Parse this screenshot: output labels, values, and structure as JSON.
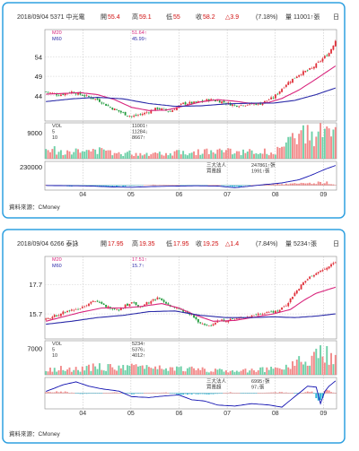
{
  "chart_data": [
    {
      "type": "candlestick",
      "header": {
        "date": "2018/09/04",
        "stock": "5371 中光電",
        "open_label": "開",
        "open": "55.4",
        "high_label": "高",
        "high": "59.1",
        "low_label": "低",
        "low": "55",
        "close_label": "收",
        "close": "58.2",
        "change": "△3.9",
        "change_pct": "(7.18%)",
        "volume_text": "量 11001↑張",
        "period": "日"
      },
      "ma_legend": [
        {
          "name": "M20",
          "value": "51.64↑",
          "color": "#d8247c"
        },
        {
          "name": "M60",
          "value": "45.99↑",
          "color": "#2a2aa8"
        }
      ],
      "price_axis": {
        "ticks": [
          "54",
          "49",
          "44"
        ],
        "range": [
          37.5,
          61
        ]
      },
      "volume_axis": {
        "ticks": [
          "9000"
        ],
        "max": 12500
      },
      "volume_legend": [
        {
          "name": "VOL",
          "value": "11001↑"
        },
        {
          "name": "5",
          "value": "11284↓"
        },
        {
          "name": "10",
          "value": "8667↑"
        }
      ],
      "inst_axis": {
        "ticks": [
          "230000"
        ],
        "range": [
          -60000,
          300000
        ]
      },
      "inst_legend": [
        {
          "name": "三大法人",
          "value": "247861↑張"
        },
        {
          "name": "買賣超",
          "value": "1991↑張"
        }
      ],
      "x_ticks": [
        "04",
        "05",
        "06",
        "07",
        "08",
        "09"
      ],
      "close_path": [
        [
          0,
          45
        ],
        [
          6,
          44.2
        ],
        [
          12,
          45
        ],
        [
          18,
          44
        ],
        [
          24,
          43
        ],
        [
          30,
          41
        ],
        [
          36,
          39.5
        ],
        [
          40,
          38.6
        ],
        [
          46,
          39.5
        ],
        [
          52,
          40.8
        ],
        [
          58,
          40
        ],
        [
          64,
          42
        ],
        [
          70,
          42.2
        ],
        [
          76,
          43
        ],
        [
          82,
          42.5
        ],
        [
          88,
          41.5
        ],
        [
          94,
          41.8
        ],
        [
          100,
          42
        ],
        [
          106,
          43.5
        ],
        [
          112,
          47
        ],
        [
          118,
          49.5
        ],
        [
          124,
          51
        ],
        [
          128,
          53
        ],
        [
          132,
          55
        ],
        [
          135,
          58.2
        ]
      ],
      "ma20": [
        [
          0,
          44.4
        ],
        [
          8,
          44.6
        ],
        [
          16,
          44.8
        ],
        [
          24,
          44.3
        ],
        [
          32,
          43
        ],
        [
          40,
          41
        ],
        [
          48,
          40.2
        ],
        [
          56,
          40.3
        ],
        [
          64,
          41.3
        ],
        [
          72,
          42.4
        ],
        [
          80,
          43
        ],
        [
          88,
          42.6
        ],
        [
          96,
          42
        ],
        [
          104,
          42.3
        ],
        [
          110,
          43.3
        ],
        [
          118,
          45.5
        ],
        [
          124,
          47.6
        ],
        [
          130,
          49.8
        ],
        [
          135,
          51.64
        ]
      ],
      "ma60": [
        [
          0,
          42.5
        ],
        [
          12,
          43.2
        ],
        [
          24,
          43.6
        ],
        [
          36,
          43.2
        ],
        [
          48,
          42
        ],
        [
          60,
          41.3
        ],
        [
          72,
          41.4
        ],
        [
          84,
          41.9
        ],
        [
          96,
          42.1
        ],
        [
          106,
          42.1
        ],
        [
          116,
          42.8
        ],
        [
          126,
          44.3
        ],
        [
          135,
          45.99
        ]
      ],
      "vol_path": [
        [
          0,
          3200
        ],
        [
          12,
          2600
        ],
        [
          24,
          2800
        ],
        [
          36,
          2100
        ],
        [
          48,
          1900
        ],
        [
          60,
          2400
        ],
        [
          72,
          2600
        ],
        [
          84,
          2700
        ],
        [
          96,
          2300
        ],
        [
          106,
          2600
        ],
        [
          112,
          4800
        ],
        [
          118,
          7600
        ],
        [
          122,
          9000
        ],
        [
          126,
          7000
        ],
        [
          130,
          10800
        ],
        [
          133,
          9200
        ],
        [
          135,
          11001
        ]
      ],
      "inst_path": [
        [
          0,
          -2000
        ],
        [
          10,
          -5000
        ],
        [
          20,
          -8000
        ],
        [
          30,
          -20000
        ],
        [
          40,
          -25000
        ],
        [
          50,
          -15000
        ],
        [
          60,
          -10000
        ],
        [
          70,
          -6000
        ],
        [
          80,
          -9000
        ],
        [
          88,
          -30000
        ],
        [
          94,
          -14000
        ],
        [
          100,
          4000
        ],
        [
          110,
          30000
        ],
        [
          118,
          70000
        ],
        [
          124,
          130000
        ],
        [
          130,
          200000
        ],
        [
          135,
          247861
        ]
      ],
      "net_path": [
        [
          0,
          3000
        ],
        [
          10,
          -10000
        ],
        [
          20,
          -8000
        ],
        [
          30,
          -16000
        ],
        [
          40,
          -8000
        ],
        [
          50,
          6000
        ],
        [
          60,
          2000
        ],
        [
          70,
          -5000
        ],
        [
          80,
          4000
        ],
        [
          88,
          -25000
        ],
        [
          94,
          -2000
        ],
        [
          100,
          9000
        ],
        [
          110,
          15000
        ],
        [
          118,
          22000
        ],
        [
          124,
          28000
        ],
        [
          130,
          40000
        ],
        [
          135,
          1991
        ]
      ]
    },
    {
      "type": "candlestick",
      "header": {
        "date": "2018/09/04",
        "stock": "6266 泰詠",
        "open_label": "開",
        "open": "17.95",
        "high_label": "高",
        "high": "19.35",
        "low_label": "低",
        "low": "17.95",
        "close_label": "收",
        "close": "19.25",
        "change": "△1.4",
        "change_pct": "(7.84%)",
        "volume_text": "量 5234↑張",
        "period": "日"
      },
      "ma_legend": [
        {
          "name": "M20",
          "value": "17.51↑",
          "color": "#d8247c"
        },
        {
          "name": "M60",
          "value": "15.7↑",
          "color": "#2a2aa8"
        }
      ],
      "price_axis": {
        "ticks": [
          "17.7",
          "15.7"
        ],
        "range": [
          14,
          19.6
        ]
      },
      "volume_axis": {
        "ticks": [
          "7000"
        ],
        "max": 9000
      },
      "volume_legend": [
        {
          "name": "VOL",
          "value": "5234↑"
        },
        {
          "name": "5",
          "value": "5376↓"
        },
        {
          "name": "10",
          "value": "4012↑"
        }
      ],
      "inst_axis": {
        "ticks": [],
        "range": [
          -9000,
          9000
        ]
      },
      "inst_legend": [
        {
          "name": "三大法人",
          "value": "6995↑張"
        },
        {
          "name": "買賣超",
          "value": "97↓張"
        }
      ],
      "x_ticks": [
        "04",
        "05",
        "06",
        "07",
        "08",
        "09"
      ],
      "close_path": [
        [
          0,
          15.3
        ],
        [
          8,
          15.8
        ],
        [
          16,
          16.1
        ],
        [
          22,
          16.6
        ],
        [
          28,
          16.2
        ],
        [
          34,
          16
        ],
        [
          40,
          16.5
        ],
        [
          44,
          16.2
        ],
        [
          52,
          16.8
        ],
        [
          56,
          16.4
        ],
        [
          62,
          16
        ],
        [
          68,
          15.6
        ],
        [
          72,
          15
        ],
        [
          76,
          14.9
        ],
        [
          80,
          15.2
        ],
        [
          86,
          15.3
        ],
        [
          94,
          15.5
        ],
        [
          102,
          15.8
        ],
        [
          108,
          15.9
        ],
        [
          112,
          16.3
        ],
        [
          116,
          17.1
        ],
        [
          120,
          17.8
        ],
        [
          124,
          18.3
        ],
        [
          128,
          18.6
        ],
        [
          131,
          18.8
        ],
        [
          135,
          19.25
        ]
      ],
      "ma20": [
        [
          0,
          15.2
        ],
        [
          8,
          15.5
        ],
        [
          16,
          15.8
        ],
        [
          26,
          16.1
        ],
        [
          36,
          16.1
        ],
        [
          44,
          16.2
        ],
        [
          54,
          16.4
        ],
        [
          62,
          16.1
        ],
        [
          70,
          15.6
        ],
        [
          78,
          15.2
        ],
        [
          88,
          15.25
        ],
        [
          98,
          15.5
        ],
        [
          106,
          15.7
        ],
        [
          114,
          16
        ],
        [
          120,
          16.6
        ],
        [
          126,
          17.1
        ],
        [
          135,
          17.51
        ]
      ],
      "ma60": [
        [
          0,
          15.0
        ],
        [
          12,
          15.2
        ],
        [
          24,
          15.45
        ],
        [
          36,
          15.6
        ],
        [
          48,
          15.85
        ],
        [
          60,
          15.9
        ],
        [
          72,
          15.6
        ],
        [
          84,
          15.45
        ],
        [
          96,
          15.45
        ],
        [
          106,
          15.5
        ],
        [
          116,
          15.45
        ],
        [
          126,
          15.55
        ],
        [
          135,
          15.7
        ]
      ],
      "vol_path": [
        [
          0,
          1800
        ],
        [
          12,
          1500
        ],
        [
          24,
          2200
        ],
        [
          36,
          1900
        ],
        [
          48,
          2300
        ],
        [
          60,
          1700
        ],
        [
          72,
          1400
        ],
        [
          84,
          1200
        ],
        [
          96,
          1300
        ],
        [
          106,
          1500
        ],
        [
          112,
          2300
        ],
        [
          118,
          3800
        ],
        [
          124,
          4200
        ],
        [
          128,
          8000
        ],
        [
          132,
          5000
        ],
        [
          135,
          5234
        ]
      ],
      "inst_path": [
        [
          0,
          1000
        ],
        [
          8,
          4800
        ],
        [
          14,
          6500
        ],
        [
          20,
          4000
        ],
        [
          26,
          2500
        ],
        [
          34,
          1200
        ],
        [
          40,
          -2000
        ],
        [
          48,
          -2500
        ],
        [
          56,
          -1500
        ],
        [
          62,
          -1000
        ],
        [
          68,
          -3800
        ],
        [
          74,
          -4500
        ],
        [
          80,
          -6800
        ],
        [
          88,
          -7400
        ],
        [
          96,
          -6000
        ],
        [
          104,
          -6800
        ],
        [
          110,
          -8000
        ],
        [
          116,
          -2000
        ],
        [
          122,
          4000
        ],
        [
          126,
          3500
        ],
        [
          128,
          -6000
        ],
        [
          130,
          1000
        ],
        [
          132,
          4000
        ],
        [
          135,
          6995
        ]
      ],
      "net_path": [
        [
          0,
          600
        ],
        [
          8,
          800
        ],
        [
          16,
          -300
        ],
        [
          24,
          -200
        ],
        [
          32,
          400
        ],
        [
          40,
          -500
        ],
        [
          48,
          200
        ],
        [
          56,
          300
        ],
        [
          62,
          -700
        ],
        [
          70,
          -400
        ],
        [
          78,
          -500
        ],
        [
          86,
          400
        ],
        [
          94,
          -300
        ],
        [
          102,
          200
        ],
        [
          110,
          500
        ],
        [
          118,
          -300
        ],
        [
          124,
          1500
        ],
        [
          128,
          -6000
        ],
        [
          130,
          2000
        ],
        [
          135,
          97
        ]
      ]
    }
  ],
  "footer": [
    {
      "source": "資料來源：CMoney"
    },
    {
      "source": "資料來源：CMoney"
    }
  ]
}
